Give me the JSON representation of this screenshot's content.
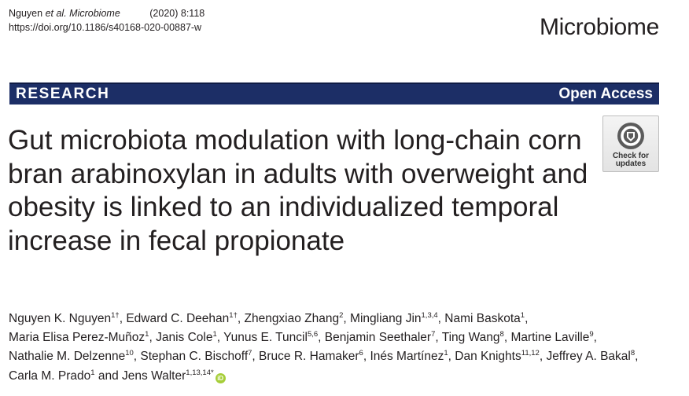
{
  "citation": {
    "authors": "Nguyen",
    "etal": "et al.",
    "journal": "Microbiome",
    "year_volume": "(2020) 8:118",
    "doi": "https://doi.org/10.1186/s40168-020-00887-w"
  },
  "journal_name": "Microbiome",
  "banner": {
    "label": "RESEARCH",
    "access": "Open Access"
  },
  "title": "Gut microbiota modulation with long-chain corn bran arabinoxylan in adults with overweight and obesity is linked to an individualized temporal increase in fecal propionate",
  "badge": {
    "line1": "Check for",
    "line2": "updates"
  },
  "authors": [
    [
      {
        "name": "Nguyen K. Nguyen",
        "sup": "1†",
        "sep": ", "
      },
      {
        "name": "Edward C. Deehan",
        "sup": "1†",
        "sep": ", "
      },
      {
        "name": "Zhengxiao Zhang",
        "sup": "2",
        "sep": ", "
      },
      {
        "name": "Mingliang Jin",
        "sup": "1,3,4",
        "sep": ", "
      },
      {
        "name": "Nami Baskota",
        "sup": "1",
        "sep": ","
      }
    ],
    [
      {
        "name": "Maria Elisa Perez-Muñoz",
        "sup": "1",
        "sep": ", "
      },
      {
        "name": "Janis Cole",
        "sup": "1",
        "sep": ", "
      },
      {
        "name": "Yunus E. Tuncil",
        "sup": "5,6",
        "sep": ", "
      },
      {
        "name": "Benjamin Seethaler",
        "sup": "7",
        "sep": ", "
      },
      {
        "name": "Ting Wang",
        "sup": "8",
        "sep": ", "
      },
      {
        "name": "Martine Laville",
        "sup": "9",
        "sep": ","
      }
    ],
    [
      {
        "name": "Nathalie M. Delzenne",
        "sup": "10",
        "sep": ", "
      },
      {
        "name": "Stephan C. Bischoff",
        "sup": "7",
        "sep": ", "
      },
      {
        "name": "Bruce R. Hamaker",
        "sup": "6",
        "sep": ", "
      },
      {
        "name": "Inés Martínez",
        "sup": "1",
        "sep": ", "
      },
      {
        "name": "Dan Knights",
        "sup": "11,12",
        "sep": ", "
      },
      {
        "name": "Jeffrey A. Bakal",
        "sup": "8",
        "sep": ","
      }
    ],
    [
      {
        "name": "Carla M. Prado",
        "sup": "1",
        "sep": " and "
      },
      {
        "name": "Jens Walter",
        "sup": "1,13,14*",
        "sep": ""
      }
    ]
  ],
  "icons": {
    "orcid": "orcid-icon",
    "crossmark": "crossmark-icon"
  },
  "colors": {
    "banner": "#1c2e66",
    "orcid": "#a6ce39",
    "text": "#231f20"
  }
}
